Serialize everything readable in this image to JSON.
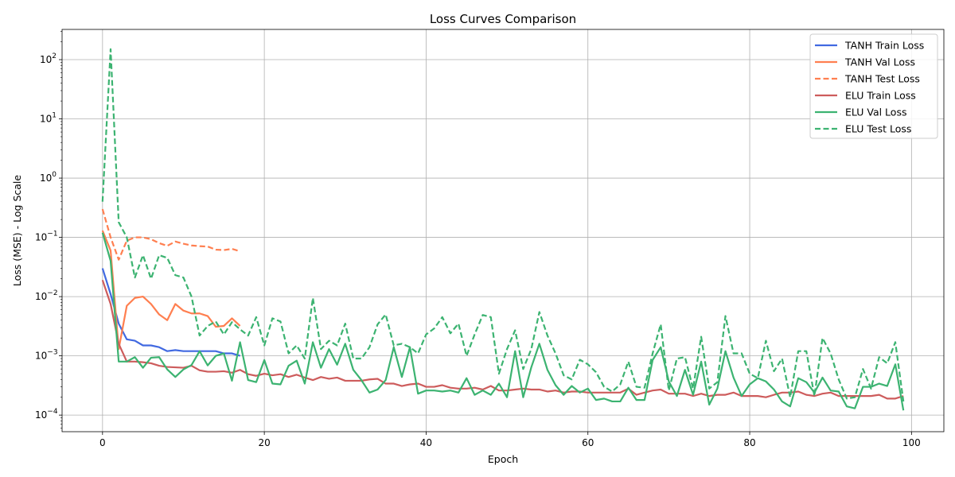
{
  "chart_data": {
    "type": "line",
    "title": "Loss Curves Comparison",
    "xlabel": "Epoch",
    "ylabel": "Loss (MSE) - Log Scale",
    "yscale": "log",
    "xlim": [
      -5,
      104
    ],
    "ylim": [
      5e-05,
      0.3
    ],
    "ylim_log10": [
      -4.28,
      2.51
    ],
    "xticks": [
      0,
      20,
      40,
      60,
      80,
      100
    ],
    "xtick_labels": [
      "0",
      "20",
      "40",
      "60",
      "80",
      "100"
    ],
    "yticks_log10": [
      -4,
      -3,
      -2,
      -1,
      0,
      1,
      2
    ],
    "ytick_labels_text": [
      {
        "base": "10",
        "exp": "−4"
      },
      {
        "base": "10",
        "exp": "−3"
      },
      {
        "base": "10",
        "exp": "−2"
      },
      {
        "base": "10",
        "exp": "−1"
      },
      {
        "base": "10",
        "exp": "0"
      },
      {
        "base": "10",
        "exp": "1"
      },
      {
        "base": "10",
        "exp": "2"
      }
    ],
    "grid": true,
    "legend_position": "top-right",
    "series": [
      {
        "name": "TANH Train Loss",
        "color": "#4169e1",
        "dash": "solid",
        "x": [
          0,
          1,
          2,
          3,
          4,
          5,
          6,
          7,
          8,
          9,
          10,
          11,
          12,
          13,
          14,
          15,
          16,
          17
        ],
        "values": [
          0.03,
          0.011,
          0.0035,
          0.0019,
          0.0018,
          0.0015,
          0.0015,
          0.0014,
          0.0012,
          0.00125,
          0.0012,
          0.0012,
          0.0012,
          0.0012,
          0.0012,
          0.0011,
          0.0011,
          0.001
        ]
      },
      {
        "name": "TANH Val Loss",
        "color": "#ff7f50",
        "dash": "solid",
        "x": [
          0,
          1,
          2,
          3,
          4,
          5,
          6,
          7,
          8,
          9,
          10,
          11,
          12,
          13,
          14,
          15,
          16,
          17
        ],
        "values": [
          0.13,
          0.06,
          0.0013,
          0.007,
          0.0095,
          0.01,
          0.0075,
          0.005,
          0.004,
          0.0075,
          0.0058,
          0.0052,
          0.0052,
          0.0047,
          0.0031,
          0.0032,
          0.0043,
          0.0032
        ]
      },
      {
        "name": "TANH Test Loss",
        "color": "#ff7f50",
        "dash": "dashed",
        "x": [
          0,
          1,
          2,
          3,
          4,
          5,
          6,
          7,
          8,
          9,
          10,
          11,
          12,
          13,
          14,
          15,
          16,
          17
        ],
        "values": [
          0.3,
          0.1,
          0.042,
          0.088,
          0.1,
          0.1,
          0.093,
          0.08,
          0.072,
          0.085,
          0.078,
          0.073,
          0.071,
          0.07,
          0.062,
          0.061,
          0.064,
          0.058
        ]
      },
      {
        "name": "ELU Train Loss",
        "color": "#cd5c5c",
        "dash": "solid",
        "x": [
          0,
          1,
          2,
          3,
          4,
          5,
          6,
          7,
          8,
          9,
          10,
          11,
          12,
          13,
          14,
          15,
          16,
          17,
          18,
          19,
          20,
          21,
          22,
          23,
          24,
          25,
          26,
          27,
          28,
          29,
          30,
          31,
          32,
          33,
          34,
          35,
          36,
          37,
          38,
          39,
          40,
          41,
          42,
          43,
          44,
          45,
          46,
          47,
          48,
          49,
          50,
          51,
          52,
          53,
          54,
          55,
          56,
          57,
          58,
          59,
          60,
          61,
          62,
          63,
          64,
          65,
          66,
          67,
          68,
          69,
          70,
          71,
          72,
          73,
          74,
          75,
          76,
          77,
          78,
          79,
          80,
          81,
          82,
          83,
          84,
          85,
          86,
          87,
          88,
          89,
          90,
          91,
          92,
          93,
          94,
          95,
          96,
          97,
          98,
          99
        ],
        "values": [
          0.019,
          0.0075,
          0.0016,
          0.0008,
          0.0008,
          0.00078,
          0.00075,
          0.00068,
          0.00065,
          0.00064,
          0.00063,
          0.00068,
          0.00057,
          0.00054,
          0.00054,
          0.00055,
          0.00052,
          0.00058,
          0.00049,
          0.00046,
          0.0005,
          0.00047,
          0.00049,
          0.00044,
          0.00048,
          0.00043,
          0.00039,
          0.00044,
          0.00041,
          0.00043,
          0.00038,
          0.00038,
          0.00038,
          0.0004,
          0.00041,
          0.00034,
          0.00034,
          0.00031,
          0.00033,
          0.00034,
          0.0003,
          0.0003,
          0.00032,
          0.00029,
          0.00028,
          0.00028,
          0.00029,
          0.00027,
          0.00031,
          0.00026,
          0.00026,
          0.00027,
          0.00028,
          0.00027,
          0.00027,
          0.00025,
          0.00026,
          0.00024,
          0.00025,
          0.00025,
          0.00024,
          0.00024,
          0.00024,
          0.00024,
          0.00024,
          0.00028,
          0.00022,
          0.00024,
          0.00026,
          0.00027,
          0.00023,
          0.00023,
          0.00023,
          0.00021,
          0.00023,
          0.00021,
          0.00022,
          0.00022,
          0.00024,
          0.00021,
          0.00021,
          0.00021,
          0.0002,
          0.00022,
          0.00024,
          0.00024,
          0.00025,
          0.00022,
          0.00021,
          0.00023,
          0.00024,
          0.00021,
          0.00021,
          0.00021,
          0.00021,
          0.00021,
          0.00022,
          0.00019,
          0.00019,
          0.00021
        ]
      },
      {
        "name": "ELU Val Loss",
        "color": "#3cb371",
        "dash": "solid",
        "x": [
          0,
          1,
          2,
          3,
          4,
          5,
          6,
          7,
          8,
          9,
          10,
          11,
          12,
          13,
          14,
          15,
          16,
          17,
          18,
          19,
          20,
          21,
          22,
          23,
          24,
          25,
          26,
          27,
          28,
          29,
          30,
          31,
          32,
          33,
          34,
          35,
          36,
          37,
          38,
          39,
          40,
          41,
          42,
          43,
          44,
          45,
          46,
          47,
          48,
          49,
          50,
          51,
          52,
          53,
          54,
          55,
          56,
          57,
          58,
          59,
          60,
          61,
          62,
          63,
          64,
          65,
          66,
          67,
          68,
          69,
          70,
          71,
          72,
          73,
          74,
          75,
          76,
          77,
          78,
          79,
          80,
          81,
          82,
          83,
          84,
          85,
          86,
          87,
          88,
          89,
          90,
          91,
          92,
          93,
          94,
          95,
          96,
          97,
          98,
          99
        ],
        "values": [
          0.12,
          0.04,
          0.0008,
          0.0008,
          0.00095,
          0.00063,
          0.00093,
          0.00095,
          0.00059,
          0.00044,
          0.00059,
          0.0007,
          0.0012,
          0.00069,
          0.001,
          0.0011,
          0.00038,
          0.0017,
          0.00039,
          0.00036,
          0.00085,
          0.00034,
          0.00033,
          0.00068,
          0.00083,
          0.00034,
          0.0017,
          0.00063,
          0.0013,
          0.00071,
          0.0016,
          0.00058,
          0.00039,
          0.00024,
          0.00027,
          0.00039,
          0.0014,
          0.00044,
          0.0014,
          0.00023,
          0.00026,
          0.00026,
          0.00025,
          0.00026,
          0.00024,
          0.00042,
          0.00022,
          0.00026,
          0.00022,
          0.00034,
          0.0002,
          0.0012,
          0.0002,
          0.00064,
          0.0016,
          0.00058,
          0.00032,
          0.00022,
          0.00031,
          0.00024,
          0.00028,
          0.00018,
          0.00019,
          0.00017,
          0.00017,
          0.00029,
          0.00018,
          0.00018,
          0.00085,
          0.0014,
          0.00037,
          0.00021,
          0.00058,
          0.00022,
          0.0008,
          0.00015,
          0.00028,
          0.0012,
          0.00043,
          0.00021,
          0.00033,
          0.00042,
          0.00037,
          0.00027,
          0.00017,
          0.00014,
          0.00042,
          0.00036,
          0.00024,
          0.00043,
          0.00026,
          0.00025,
          0.00014,
          0.00013,
          0.0003,
          0.0003,
          0.00034,
          0.00031,
          0.00072,
          0.00012
        ]
      },
      {
        "name": "ELU Test Loss",
        "color": "#3cb371",
        "dash": "dashed",
        "x": [
          0,
          1,
          2,
          3,
          4,
          5,
          6,
          7,
          8,
          9,
          10,
          11,
          12,
          13,
          14,
          15,
          16,
          17,
          18,
          19,
          20,
          21,
          22,
          23,
          24,
          25,
          26,
          27,
          28,
          29,
          30,
          31,
          32,
          33,
          34,
          35,
          36,
          37,
          38,
          39,
          40,
          41,
          42,
          43,
          44,
          45,
          46,
          47,
          48,
          49,
          50,
          51,
          52,
          53,
          54,
          55,
          56,
          57,
          58,
          59,
          60,
          61,
          62,
          63,
          64,
          65,
          66,
          67,
          68,
          69,
          70,
          71,
          72,
          73,
          74,
          75,
          76,
          77,
          78,
          79,
          80,
          81,
          82,
          83,
          84,
          85,
          86,
          87,
          88,
          89,
          90,
          91,
          92,
          93,
          94,
          95,
          96,
          97,
          98,
          99
        ],
        "values": [
          0.4,
          150,
          0.18,
          0.1,
          0.021,
          0.05,
          0.02,
          0.05,
          0.045,
          0.023,
          0.021,
          0.01,
          0.0022,
          0.0032,
          0.0038,
          0.0023,
          0.0037,
          0.0028,
          0.0022,
          0.0045,
          0.0015,
          0.0043,
          0.0038,
          0.0011,
          0.0015,
          0.0009,
          0.0095,
          0.0013,
          0.0018,
          0.0015,
          0.0035,
          0.0009,
          0.0009,
          0.0014,
          0.0034,
          0.005,
          0.0015,
          0.0016,
          0.0014,
          0.0011,
          0.0023,
          0.0029,
          0.0045,
          0.0024,
          0.0035,
          0.001,
          0.0023,
          0.0049,
          0.0045,
          0.0005,
          0.0013,
          0.0027,
          0.0006,
          0.0013,
          0.0055,
          0.0022,
          0.0011,
          0.00047,
          0.0004,
          0.00086,
          0.00072,
          0.00053,
          0.0003,
          0.00025,
          0.00033,
          0.0008,
          0.0003,
          0.00029,
          0.0011,
          0.0034,
          0.00026,
          0.0009,
          0.00095,
          0.00028,
          0.0021,
          0.00028,
          0.00036,
          0.0047,
          0.0011,
          0.0011,
          0.0005,
          0.00042,
          0.0018,
          0.00055,
          0.0009,
          0.0002,
          0.0012,
          0.0012,
          0.00021,
          0.002,
          0.0011,
          0.0004,
          0.00019,
          0.0002,
          0.0006,
          0.00028,
          0.00095,
          0.00075,
          0.0017,
          0.00017
        ]
      }
    ]
  }
}
